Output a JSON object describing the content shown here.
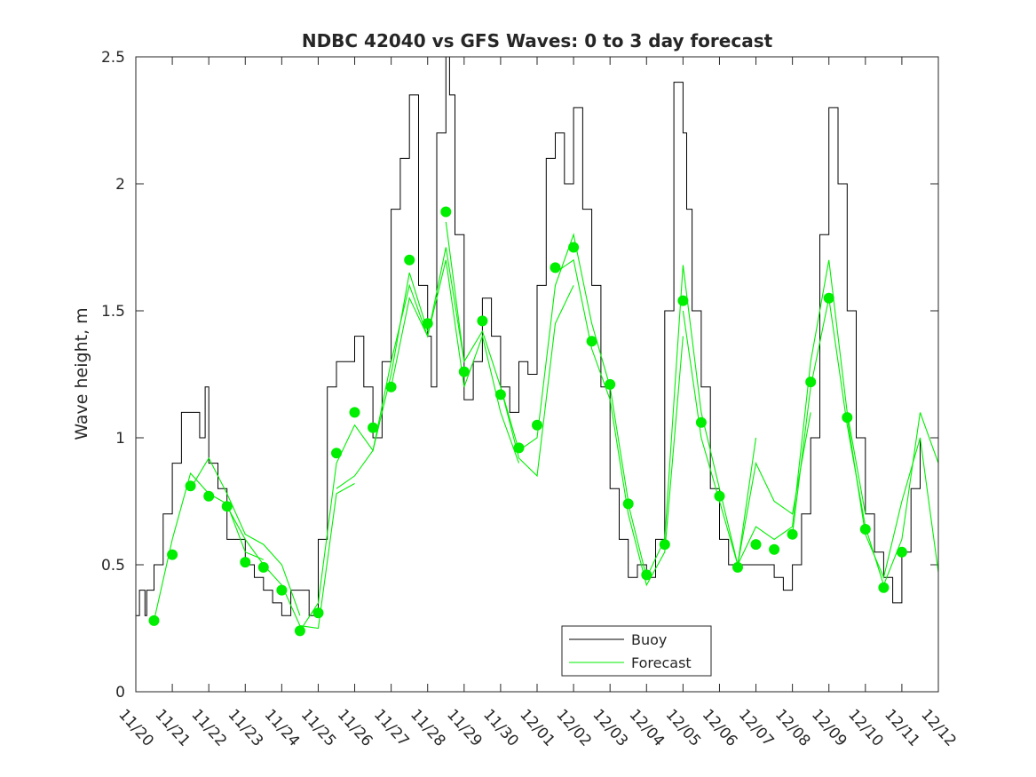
{
  "chart_data": {
    "type": "line",
    "title": "NDBC 42040 vs GFS Waves: 0 to 3 day forecast",
    "xlabel": "",
    "ylabel": "Wave height, m",
    "ylim": [
      0,
      2.5
    ],
    "yticks": [
      0,
      0.5,
      1,
      1.5,
      2,
      2.5
    ],
    "ytick_labels": [
      "0",
      "0.5",
      "1",
      "1.5",
      "2",
      "2.5"
    ],
    "xlim": [
      0,
      22
    ],
    "xtick_labels": [
      "11/20",
      "11/21",
      "11/22",
      "11/23",
      "11/24",
      "11/25",
      "11/26",
      "11/27",
      "11/28",
      "11/29",
      "11/30",
      "12/01",
      "12/02",
      "12/03",
      "12/04",
      "12/05",
      "12/06",
      "12/07",
      "12/08",
      "12/09",
      "12/10",
      "12/11",
      "12/12"
    ],
    "legend": {
      "position": "bottom-center",
      "entries": [
        "Buoy",
        "Forecast"
      ]
    },
    "colors": {
      "buoy": "#000000",
      "forecast": "#00ee00",
      "axis": "#262626"
    },
    "buoy": {
      "name": "Buoy",
      "x": [
        0,
        0.1,
        0.25,
        0.3,
        0.5,
        0.75,
        1,
        1.25,
        1.5,
        1.75,
        1.9,
        2,
        2.25,
        2.5,
        2.75,
        3,
        3.25,
        3.5,
        3.75,
        4,
        4.25,
        4.5,
        4.75,
        5,
        5.25,
        5.5,
        5.75,
        6,
        6.25,
        6.5,
        6.75,
        7,
        7.25,
        7.5,
        7.75,
        8,
        8.1,
        8.25,
        8.5,
        8.6,
        8.75,
        9,
        9.25,
        9.5,
        9.75,
        10,
        10.25,
        10.5,
        10.75,
        11,
        11.25,
        11.5,
        11.75,
        12,
        12.25,
        12.5,
        12.75,
        13,
        13.25,
        13.5,
        13.75,
        14,
        14.25,
        14.5,
        14.75,
        15,
        15.1,
        15.25,
        15.5,
        15.75,
        16,
        16.25,
        16.5,
        16.75,
        17,
        17.25,
        17.5,
        17.75,
        18,
        18.25,
        18.5,
        18.75,
        19,
        19.25,
        19.5,
        19.75,
        20,
        20.25,
        20.5,
        20.75,
        21,
        21.25,
        21.5
      ],
      "values": [
        0.3,
        0.4,
        0.3,
        0.4,
        0.5,
        0.7,
        0.9,
        1.1,
        1.1,
        1.0,
        1.2,
        0.9,
        0.8,
        0.6,
        0.6,
        0.5,
        0.45,
        0.4,
        0.35,
        0.3,
        0.4,
        0.4,
        0.3,
        0.6,
        1.2,
        1.3,
        1.3,
        1.4,
        1.2,
        1.0,
        1.3,
        1.9,
        2.1,
        2.35,
        1.6,
        1.4,
        1.2,
        2.2,
        2.5,
        2.35,
        1.8,
        1.15,
        1.3,
        1.55,
        1.4,
        1.2,
        1.1,
        1.3,
        1.25,
        1.6,
        2.1,
        2.2,
        2.0,
        2.3,
        1.9,
        1.6,
        1.2,
        0.8,
        0.6,
        0.45,
        0.5,
        0.45,
        0.6,
        1.5,
        2.4,
        2.2,
        1.9,
        1.5,
        1.2,
        0.8,
        0.6,
        0.5,
        0.5,
        0.5,
        0.5,
        0.5,
        0.45,
        0.4,
        0.5,
        0.7,
        1.0,
        1.8,
        2.3,
        2.0,
        1.5,
        1.0,
        0.7,
        0.55,
        0.45,
        0.35,
        0.55,
        0.8,
        1.0
      ]
    },
    "forecast_markers": {
      "name": "Forecast",
      "x": [
        0.5,
        1,
        1.5,
        2,
        2.5,
        3,
        3.5,
        4,
        4.5,
        5,
        5.5,
        6,
        6.5,
        7,
        7.5,
        8,
        8.5,
        9,
        9.5,
        10,
        10.5,
        11,
        11.5,
        12,
        12.5,
        13,
        13.5,
        14,
        14.5,
        15,
        15.5,
        16,
        16.5,
        17,
        17.5,
        18,
        18.5,
        19,
        19.5,
        20,
        20.5,
        21
      ],
      "values": [
        0.28,
        0.54,
        0.81,
        0.77,
        0.73,
        0.51,
        0.49,
        0.4,
        0.24,
        0.31,
        0.94,
        1.1,
        1.04,
        1.2,
        1.7,
        1.45,
        1.89,
        1.26,
        1.46,
        1.17,
        0.96,
        1.05,
        1.67,
        1.75,
        1.38,
        1.21,
        0.74,
        0.46,
        0.58,
        1.54,
        1.06,
        0.77,
        0.49,
        0.58,
        0.56,
        0.62,
        1.22,
        1.55,
        1.08,
        0.64,
        0.41,
        0.55
      ]
    },
    "forecast_runs": [
      {
        "name": "Forecast",
        "x": [
          0.5,
          1,
          1.5,
          2,
          2.5,
          3,
          3.5
        ],
        "values": [
          0.28,
          0.6,
          0.86,
          0.78,
          0.74,
          0.55,
          0.52
        ]
      },
      {
        "name": "Forecast",
        "x": [
          1.5,
          2,
          2.5,
          3,
          3.5,
          4,
          4.5
        ],
        "values": [
          0.8,
          0.92,
          0.78,
          0.62,
          0.58,
          0.5,
          0.3
        ]
      },
      {
        "name": "Forecast",
        "x": [
          2.5,
          3,
          3.5,
          4,
          4.5,
          5,
          5.5,
          6
        ],
        "values": [
          0.73,
          0.6,
          0.5,
          0.42,
          0.26,
          0.25,
          0.78,
          0.82
        ]
      },
      {
        "name": "Forecast",
        "x": [
          4.5,
          5,
          5.5,
          6,
          6.5,
          7,
          7.5,
          8
        ],
        "values": [
          0.24,
          0.35,
          0.9,
          1.05,
          0.95,
          1.25,
          1.65,
          1.42
        ]
      },
      {
        "name": "Forecast",
        "x": [
          5.5,
          6,
          6.5,
          7,
          7.5,
          8,
          8.5,
          9
        ],
        "values": [
          0.8,
          0.85,
          0.95,
          1.3,
          1.6,
          1.4,
          1.75,
          1.3
        ]
      },
      {
        "name": "Forecast",
        "x": [
          7,
          7.5,
          8,
          8.5,
          9,
          9.5,
          10,
          10.5
        ],
        "values": [
          1.2,
          1.55,
          1.4,
          1.7,
          1.2,
          1.4,
          1.1,
          0.9
        ]
      },
      {
        "name": "Forecast",
        "x": [
          8.5,
          9,
          9.5,
          10,
          10.5,
          11,
          11.5,
          12
        ],
        "values": [
          1.85,
          1.3,
          1.42,
          1.2,
          0.92,
          0.85,
          1.45,
          1.6
        ]
      },
      {
        "name": "Forecast",
        "x": [
          10,
          10.5,
          11,
          11.5,
          12,
          12.5,
          13,
          13.5
        ],
        "values": [
          1.2,
          0.95,
          1.0,
          1.6,
          1.8,
          1.45,
          1.2,
          0.75
        ]
      },
      {
        "name": "Forecast",
        "x": [
          11.5,
          12,
          12.5,
          13,
          13.5,
          14,
          14.5,
          15
        ],
        "values": [
          1.65,
          1.7,
          1.35,
          1.15,
          0.7,
          0.42,
          0.55,
          1.4
        ]
      },
      {
        "name": "Forecast",
        "x": [
          13.5,
          14,
          14.5,
          15,
          15.5,
          16,
          16.5,
          17
        ],
        "values": [
          0.74,
          0.45,
          0.6,
          1.68,
          1.1,
          0.8,
          0.5,
          1.0
        ]
      },
      {
        "name": "Forecast",
        "x": [
          15,
          15.5,
          16,
          16.5,
          17,
          17.5,
          18,
          18.5
        ],
        "values": [
          1.5,
          1.0,
          0.75,
          0.5,
          0.9,
          0.75,
          0.7,
          1.1
        ]
      },
      {
        "name": "Forecast",
        "x": [
          16.5,
          17,
          17.5,
          18,
          18.5,
          19,
          19.5,
          20
        ],
        "values": [
          0.5,
          0.65,
          0.6,
          0.65,
          1.3,
          1.7,
          1.1,
          0.7
        ]
      },
      {
        "name": "Forecast",
        "x": [
          18,
          18.5,
          19,
          19.5,
          20,
          20.5,
          21,
          21.5,
          22
        ],
        "values": [
          0.62,
          1.2,
          1.55,
          1.05,
          0.65,
          0.42,
          0.6,
          1.1,
          0.9
        ]
      },
      {
        "name": "Forecast",
        "x": [
          19.5,
          20,
          20.5,
          21,
          21.5,
          22
        ],
        "values": [
          1.08,
          0.62,
          0.45,
          0.75,
          1.0,
          0.47
        ]
      }
    ]
  }
}
